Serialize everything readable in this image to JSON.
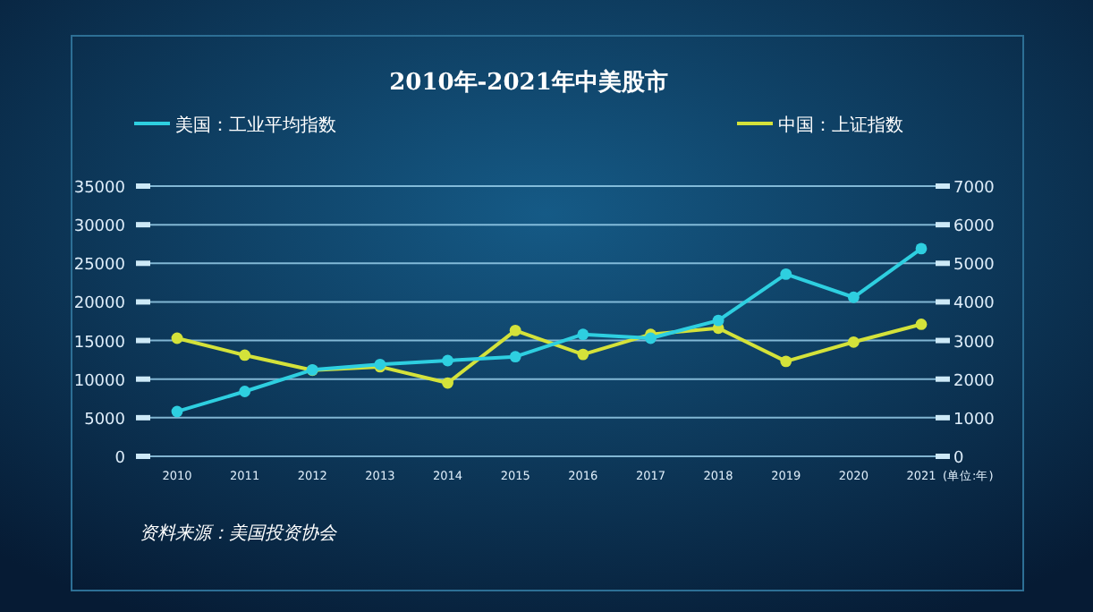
{
  "chart_data": {
    "type": "line",
    "title": "2010年-2021年中美股市",
    "categories": [
      "2010",
      "2011",
      "2012",
      "2013",
      "2014",
      "2015",
      "2016",
      "2017",
      "2018",
      "2019",
      "2020",
      "2021"
    ],
    "series": [
      {
        "name": "美国：工业平均指数",
        "color": "#2ecfe0",
        "values": [
          5800,
          8400,
          11200,
          11900,
          12400,
          12900,
          15800,
          15300,
          17600,
          23600,
          20600,
          26900
        ]
      },
      {
        "name": "中国：上证指数",
        "color": "#d4e23a",
        "axis": "y2",
        "values": [
          3060,
          2620,
          2230,
          2320,
          1900,
          3260,
          2640,
          3160,
          3320,
          2460,
          2960,
          3420
        ]
      }
    ],
    "ylim": [
      0,
      35000
    ],
    "yticks": [
      0,
      5000,
      10000,
      15000,
      20000,
      25000,
      30000,
      35000
    ],
    "y2lim": [
      0,
      7000
    ],
    "y2ticks": [
      0,
      1000,
      2000,
      3000,
      4000,
      5000,
      6000,
      7000
    ],
    "grid": "y",
    "legend": "top",
    "marker": "circle",
    "line_style": "solid",
    "annotations": [
      "(单位:年)",
      "资料来源：美国投资协会"
    ]
  }
}
